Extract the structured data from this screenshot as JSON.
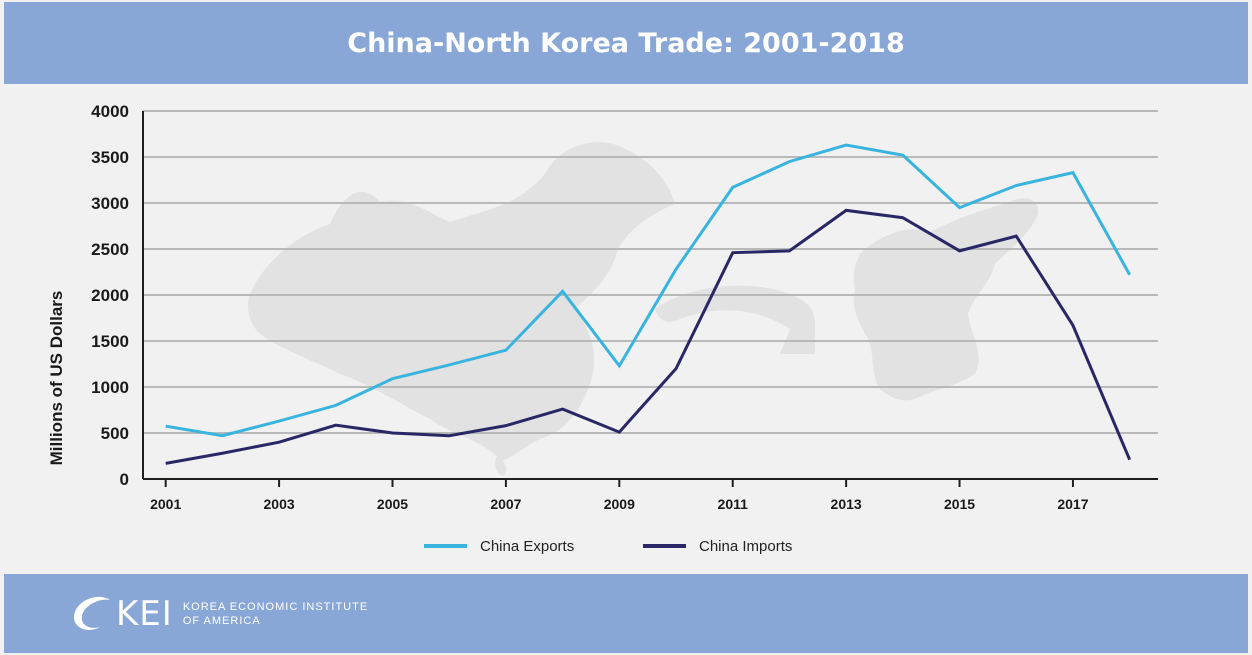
{
  "header": {
    "title": "China-North Korea Trade: 2001-2018"
  },
  "chart_data": {
    "type": "line",
    "title": "China-North Korea Trade: 2001-2018",
    "xlabel": "",
    "ylabel": "Millions of US Dollars",
    "x": [
      2001,
      2002,
      2003,
      2004,
      2005,
      2006,
      2007,
      2008,
      2009,
      2010,
      2011,
      2012,
      2013,
      2014,
      2015,
      2016,
      2017,
      2018
    ],
    "x_tick_labels": [
      "2001",
      "2003",
      "2005",
      "2007",
      "2009",
      "2011",
      "2013",
      "2015",
      "2017"
    ],
    "x_tick_values": [
      2001,
      2003,
      2005,
      2007,
      2009,
      2011,
      2013,
      2015,
      2017
    ],
    "y_tick_labels": [
      "0",
      "500",
      "1000",
      "1500",
      "2000",
      "2500",
      "3000",
      "3500",
      "4000"
    ],
    "y_tick_values": [
      0,
      500,
      1000,
      1500,
      2000,
      2500,
      3000,
      3500,
      4000
    ],
    "xlim": [
      2000.6,
      2018.5
    ],
    "ylim": [
      0,
      4000
    ],
    "grid": true,
    "legend_position": "bottom-center",
    "series": [
      {
        "name": "China Exports",
        "color": "#39b4de",
        "values": [
          575,
          470,
          630,
          800,
          1090,
          1240,
          1400,
          2040,
          1230,
          2280,
          3170,
          3450,
          3630,
          3520,
          2950,
          3190,
          3330,
          2220
        ]
      },
      {
        "name": "China Imports",
        "color": "#2a2766",
        "values": [
          170,
          280,
          400,
          585,
          500,
          470,
          580,
          760,
          510,
          1200,
          2460,
          2480,
          2920,
          2840,
          2480,
          2640,
          1670,
          210
        ]
      }
    ]
  },
  "footer": {
    "logo_mark": "KEI",
    "logo_line1": "KOREA ECONOMIC INSTITUTE",
    "logo_line2": "OF AMERICA"
  }
}
